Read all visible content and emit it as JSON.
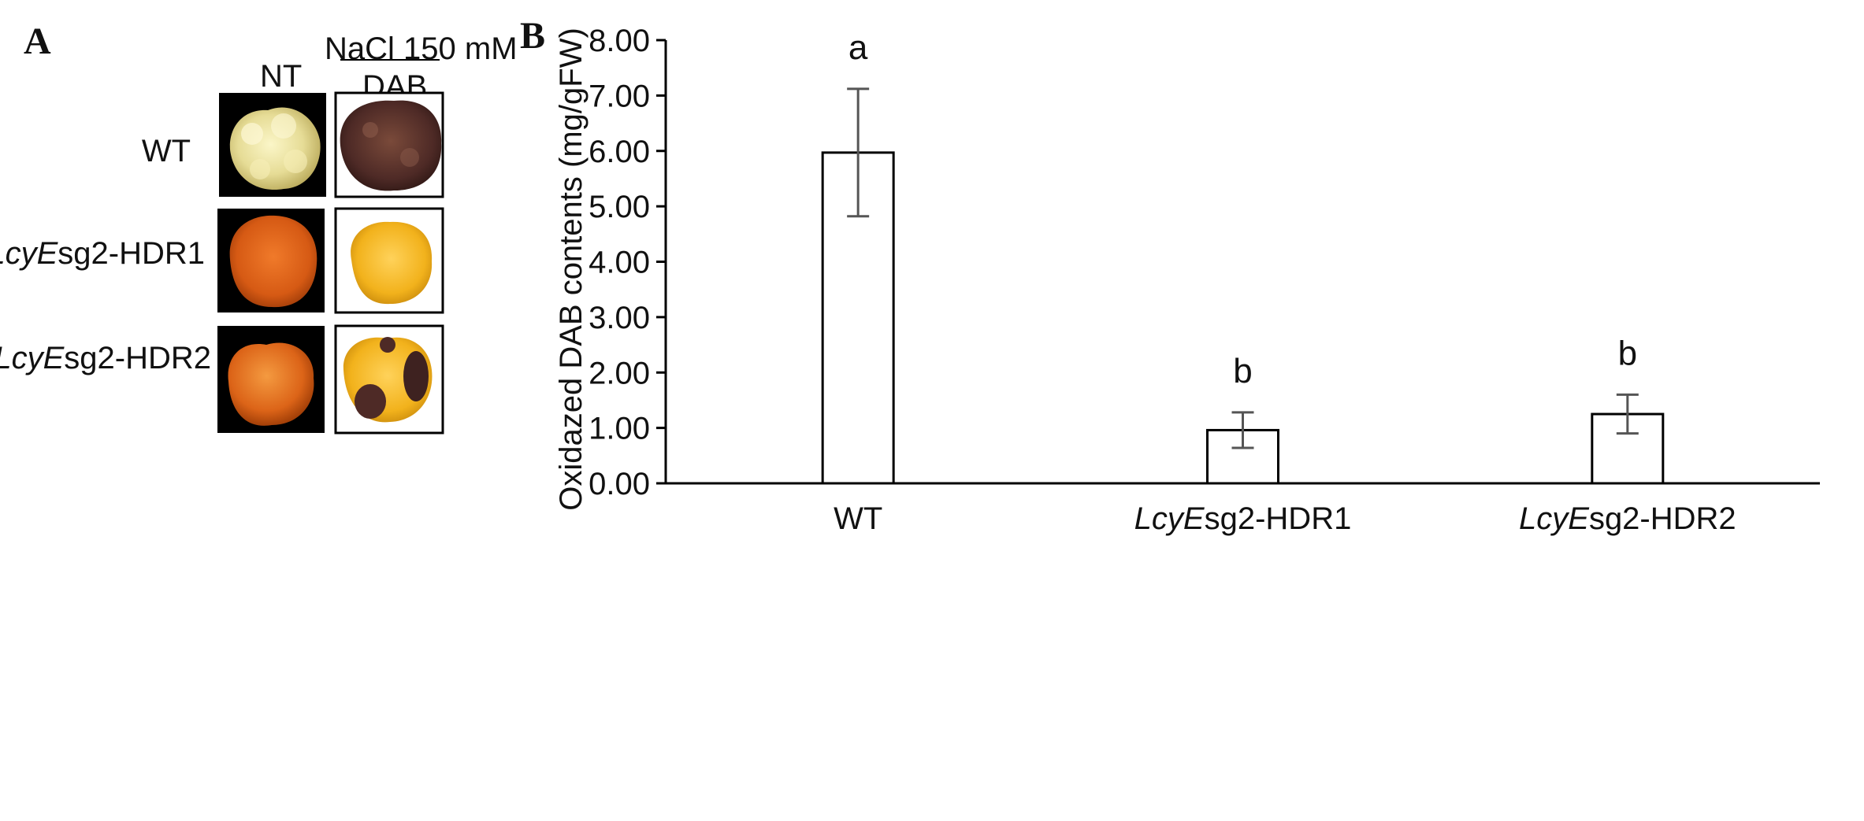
{
  "panel_a": {
    "letter": "A",
    "treatment_label": "NaCl 150 mM",
    "col_labels": {
      "nt": "NT",
      "dab": "DAB"
    },
    "rows": [
      {
        "prefix": "",
        "suffix": "WT"
      },
      {
        "prefix": "LcyE",
        "suffix": "sg2-HDR1"
      },
      {
        "prefix": "LcyE",
        "suffix": "sg2-HDR2"
      }
    ]
  },
  "panel_b": {
    "letter": "B"
  },
  "chart_data": {
    "type": "bar",
    "categories": [
      "WT",
      "LcyEsg2-HDR1",
      "LcyEsg2-HDR2"
    ],
    "category_parts": [
      {
        "italic": "",
        "rest": "WT"
      },
      {
        "italic": "LcyE",
        "rest": "sg2-HDR1"
      },
      {
        "italic": "LcyE",
        "rest": "sg2-HDR2"
      }
    ],
    "values": [
      5.97,
      0.96,
      1.25
    ],
    "errors": [
      1.15,
      0.32,
      0.35
    ],
    "significance": [
      "a",
      "b",
      "b"
    ],
    "ylabel": "Oxidazed DAB contents (mg/gFW)",
    "xlabel": "",
    "ylim": [
      0,
      8
    ],
    "yticks": [
      "0.00",
      "1.00",
      "2.00",
      "3.00",
      "4.00",
      "5.00",
      "6.00",
      "7.00",
      "8.00"
    ],
    "grid": false,
    "bar_color": "#ffffff",
    "edge_color": "#000000",
    "error_color": "#555555"
  }
}
